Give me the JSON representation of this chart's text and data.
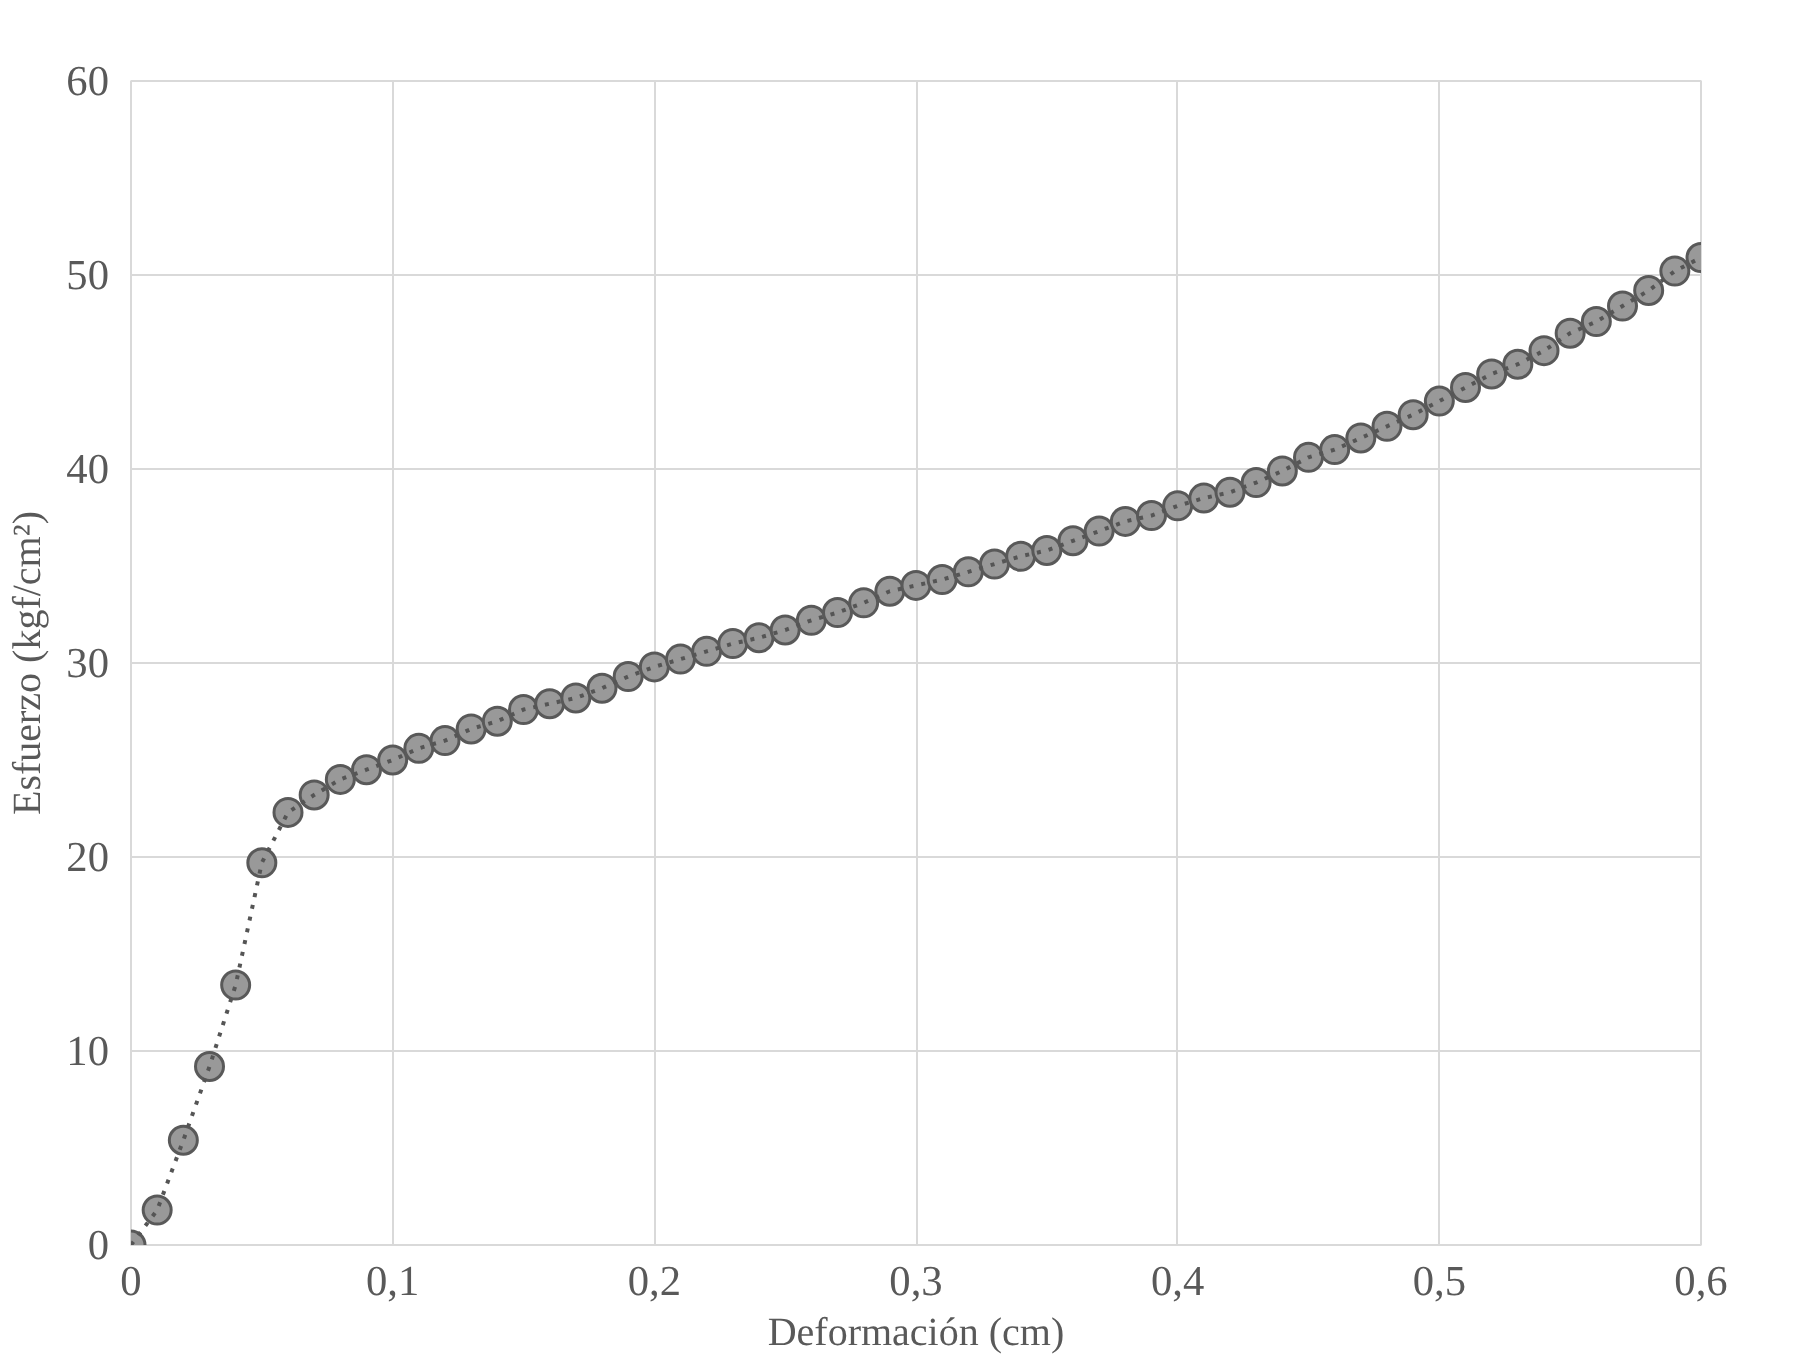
{
  "chart_data": {
    "type": "line",
    "xlabel": "Deformación (cm)",
    "ylabel": "Esfuerzo (kgf/cm²)",
    "xlim": [
      0,
      0.6
    ],
    "xticks": [
      0,
      {
        "value": 0.1,
        "label": "0,1"
      },
      {
        "value": 0.2,
        "label": "0,2"
      },
      {
        "value": 0.3,
        "label": "0,3"
      },
      {
        "value": 0.4,
        "label": "0,4"
      },
      {
        "value": 0.5,
        "label": "0,5"
      },
      {
        "value": 0.6,
        "label": "0,6"
      }
    ],
    "ylim": [
      0,
      60
    ],
    "yticks": [
      0,
      10,
      20,
      30,
      40,
      50,
      60
    ],
    "grid": true,
    "marker": "circle",
    "line_style": "dotted",
    "x": [
      0,
      0.01,
      0.02,
      0.03,
      0.04,
      0.05,
      0.06,
      0.07,
      0.08,
      0.09,
      0.1,
      0.11,
      0.12,
      0.13,
      0.14,
      0.15,
      0.16,
      0.17,
      0.18,
      0.19,
      0.2,
      0.21,
      0.22,
      0.23,
      0.24,
      0.25,
      0.26,
      0.27,
      0.28,
      0.29,
      0.3,
      0.31,
      0.32,
      0.33,
      0.34,
      0.35,
      0.36,
      0.37,
      0.38,
      0.39,
      0.4,
      0.41,
      0.42,
      0.43,
      0.44,
      0.45,
      0.46,
      0.47,
      0.48,
      0.49,
      0.5,
      0.51,
      0.52,
      0.53,
      0.54,
      0.55,
      0.56,
      0.57,
      0.58,
      0.59,
      0.6
    ],
    "series": [
      {
        "color": "#999999",
        "values": [
          0,
          1.8,
          5.4,
          9.2,
          13.4,
          19.7,
          22.3,
          23.2,
          24.0,
          24.5,
          25.0,
          25.6,
          26.0,
          26.6,
          27.0,
          27.6,
          27.9,
          28.2,
          28.7,
          29.3,
          29.8,
          30.2,
          30.6,
          31.0,
          31.3,
          31.7,
          32.2,
          32.6,
          33.1,
          33.7,
          34.0,
          34.3,
          34.7,
          35.1,
          35.5,
          35.8,
          36.3,
          36.8,
          37.3,
          37.6,
          38.1,
          38.5,
          38.8,
          39.3,
          39.9,
          40.6,
          41.0,
          41.6,
          42.2,
          42.8,
          43.5,
          44.2,
          44.9,
          45.4,
          46.1,
          47.0,
          47.6,
          48.4,
          49.2,
          50.2,
          50.9
        ]
      }
    ]
  }
}
